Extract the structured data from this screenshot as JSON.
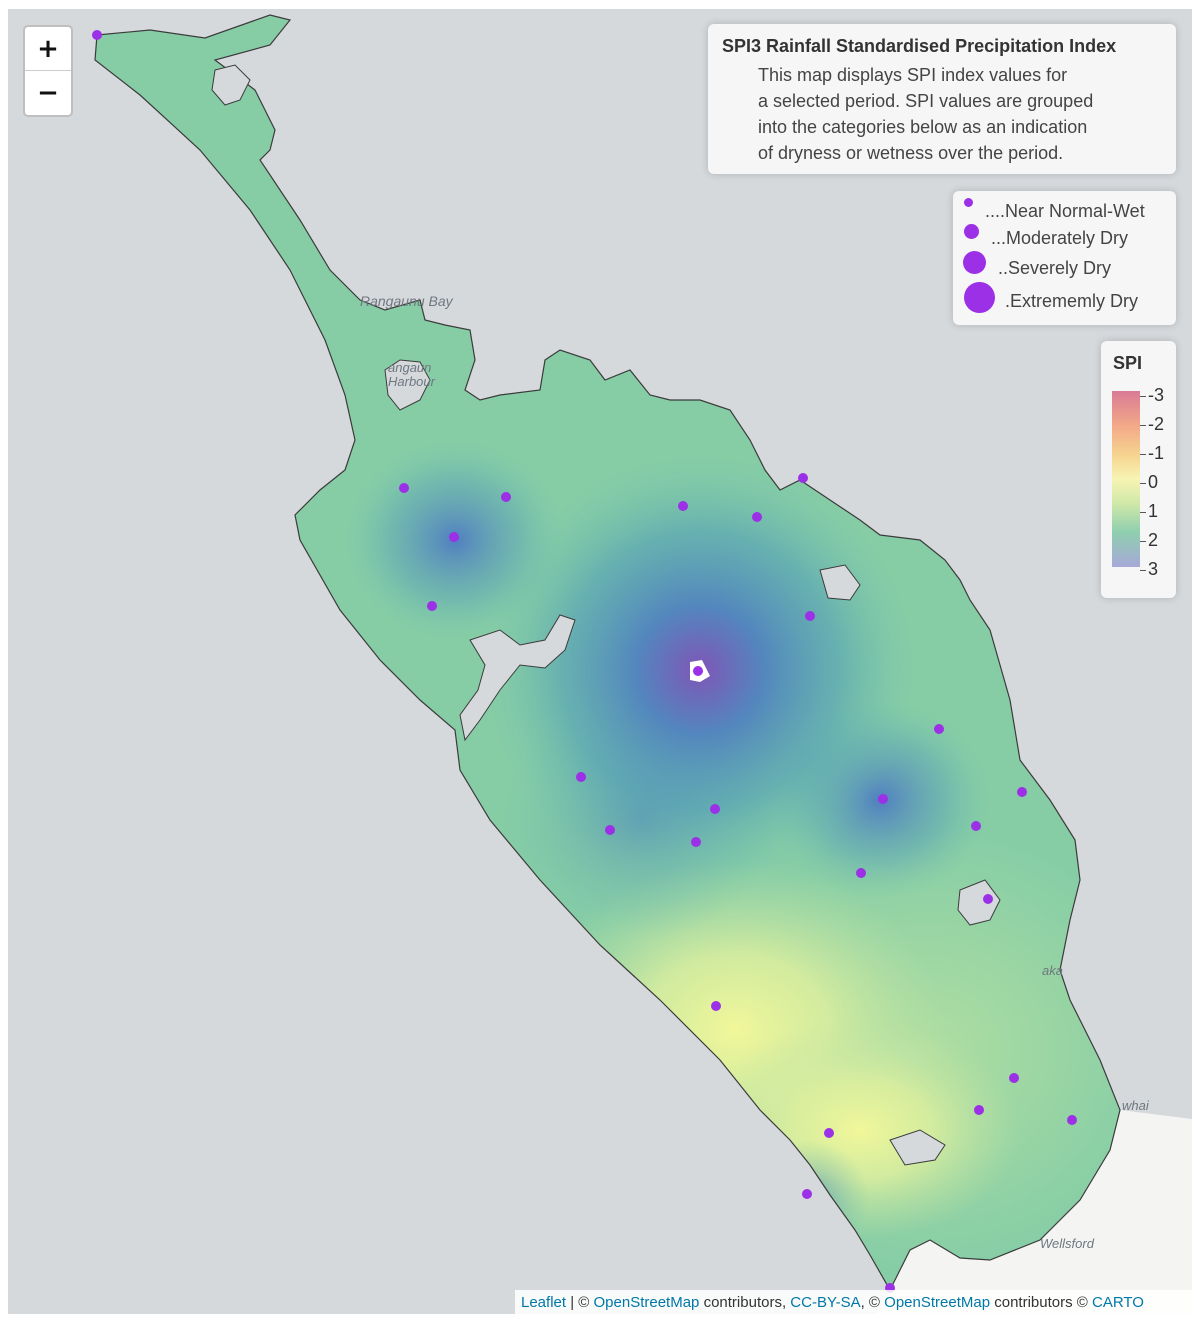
{
  "map": {
    "zoom": {
      "in_label": "+",
      "out_label": "−"
    },
    "info": {
      "title": "SPI3 Rainfall Standardised Precipitation Index",
      "lines": [
        "This map displays SPI index values for",
        "a selected period. SPI values are grouped",
        "into the categories below as an indication",
        "of dryness or wetness over the period."
      ]
    },
    "size_legend": [
      {
        "label": "....Near Normal-Wet"
      },
      {
        "label": "...Moderately Dry"
      },
      {
        "label": "..Severely Dry"
      },
      {
        "label": ".Extrememly Dry"
      }
    ],
    "spi_legend": {
      "title": "SPI",
      "ticks": [
        "-3",
        "-2",
        "-1",
        "0",
        "1",
        "2",
        "3"
      ],
      "colors": {
        "dry": "#d97a95",
        "normal": "#f7f4b3",
        "wet": "#a6a8d8"
      }
    },
    "place_labels": [
      "Rangaunu Bay",
      "angaun",
      "Harbour",
      "aka",
      "whai",
      "Wellsford"
    ],
    "station_color": "#9b30e6",
    "attribution": {
      "leaflet": "Leaflet",
      "sep1": " | © ",
      "osm1": "OpenStreetMap",
      "contrib1": " contributors, ",
      "ccbysa": "CC-BY-SA",
      "sep2": ", © ",
      "osm2": "OpenStreetMap",
      "contrib2": " contributors © ",
      "carto": "CARTO"
    }
  }
}
